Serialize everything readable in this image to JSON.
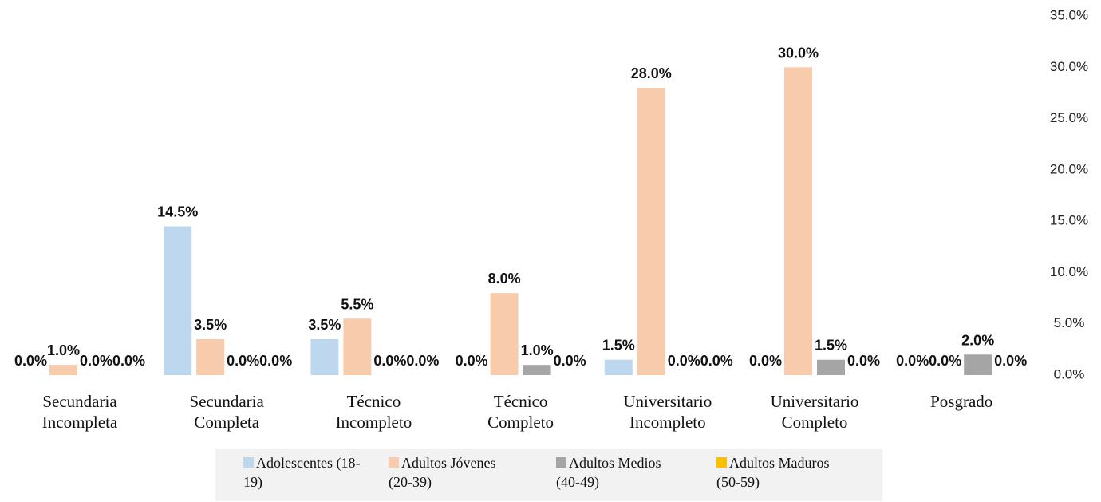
{
  "chart_data": {
    "type": "bar",
    "categories": [
      "Secundaria Incompleta",
      "Secundaria Completa",
      "Técnico Incompleto",
      "Técnico Completo",
      "Universitario Incompleto",
      "Universitario Completo",
      "Posgrado"
    ],
    "series": [
      {
        "name": "Adolescentes (18-19)",
        "color": "#bdd7ee",
        "values": [
          0,
          14.5,
          3.5,
          0,
          1.5,
          0,
          0
        ],
        "value_labels": [
          "0.0%",
          "14.5%",
          "3.5%",
          "0.0%",
          "1.5%",
          "0.0%",
          "0.0%"
        ]
      },
      {
        "name": "Adultos Jóvenes (20-39)",
        "color": "#f8cbad",
        "values": [
          1.0,
          3.5,
          5.5,
          8.0,
          28.0,
          30.0,
          0
        ],
        "value_labels": [
          "1.0%",
          "3.5%",
          "5.5%",
          "8.0%",
          "28.0%",
          "30.0%",
          "0.0%"
        ]
      },
      {
        "name": "Adultos Medios (40-49)",
        "color": "#a5a5a5",
        "values": [
          0,
          0,
          0,
          1.0,
          0,
          1.5,
          2.0
        ],
        "value_labels": [
          "0.0%",
          "0.0%",
          "0.0%",
          "1.0%",
          "0.0%",
          "1.5%",
          "2.0%"
        ]
      },
      {
        "name": "Adultos Maduros (50-59)",
        "color": "#ffc000",
        "values": [
          0,
          0,
          0,
          0,
          0,
          0,
          0
        ],
        "value_labels": [
          "0.0%",
          "0.0%",
          "0.0%",
          "0.0%",
          "0.0%",
          "0.0%",
          "0.0%"
        ]
      }
    ],
    "ylim": [
      0,
      35
    ],
    "yticks": [
      {
        "value": 0,
        "label": "0.0%"
      },
      {
        "value": 5,
        "label": "5.0%"
      },
      {
        "value": 10,
        "label": "10.0%"
      },
      {
        "value": 15,
        "label": "15.0%"
      },
      {
        "value": 20,
        "label": "20.0%"
      },
      {
        "value": 25,
        "label": "25.0%"
      },
      {
        "value": 30,
        "label": "30.0%"
      },
      {
        "value": 35,
        "label": "35.0%"
      }
    ],
    "grid": false,
    "legend": "bottom"
  }
}
